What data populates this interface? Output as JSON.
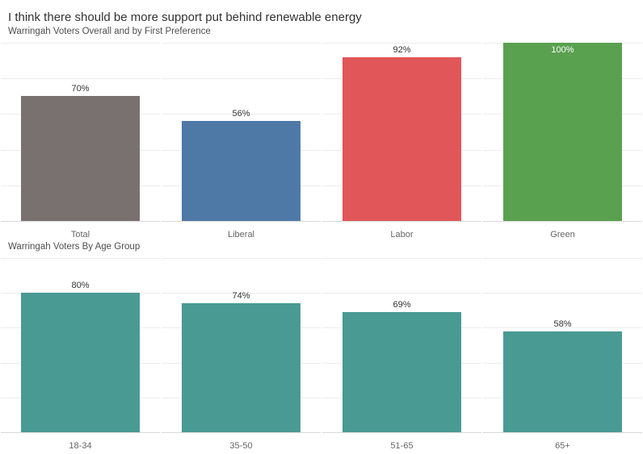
{
  "header": {
    "title": "I think there should be more support put behind renewable energy",
    "subtitle": "Warringah Voters Overall and by First Preference"
  },
  "section2": {
    "title": "Warringah Voters By Age Group"
  },
  "colors": {
    "bar_total": "#79716f",
    "bar_liberal": "#4e79a7",
    "bar_labor": "#e15759",
    "bar_green": "#59a14f",
    "bar_age_teal": "#4a9a94",
    "gridline": "#ececec",
    "axis_line": "#d9d9d9",
    "title_text": "#323232",
    "subtitle_text": "#4e4e4e",
    "value_label_text": "#333333",
    "value_label_inside_text": "#ffffff",
    "tick_label_text": "#666666"
  },
  "chart_data": [
    {
      "type": "bar",
      "title": "I think there should be more support put behind renewable energy",
      "subtitle": "Warringah Voters Overall and by First Preference",
      "categories": [
        "Total",
        "Liberal",
        "Labor",
        "Green"
      ],
      "values": [
        70,
        56,
        92,
        100
      ],
      "value_labels": [
        "70%",
        "56%",
        "92%",
        "100%"
      ],
      "bar_colors": [
        "#79716f",
        "#4e79a7",
        "#e15759",
        "#59a14f"
      ],
      "xlabel": "",
      "ylabel": "",
      "ylim": [
        0,
        100
      ],
      "gridline_interval": 20,
      "grid": "on",
      "legend": "none"
    },
    {
      "type": "bar",
      "title": "Warringah Voters By Age Group",
      "categories": [
        "18-34",
        "35-50",
        "51-65",
        "65+"
      ],
      "values": [
        80,
        74,
        69,
        58
      ],
      "value_labels": [
        "80%",
        "74%",
        "69%",
        "58%"
      ],
      "bar_colors": [
        "#4a9a94",
        "#4a9a94",
        "#4a9a94",
        "#4a9a94"
      ],
      "xlabel": "",
      "ylabel": "",
      "ylim": [
        0,
        100
      ],
      "gridline_interval": 20,
      "grid": "on",
      "legend": "none"
    }
  ]
}
